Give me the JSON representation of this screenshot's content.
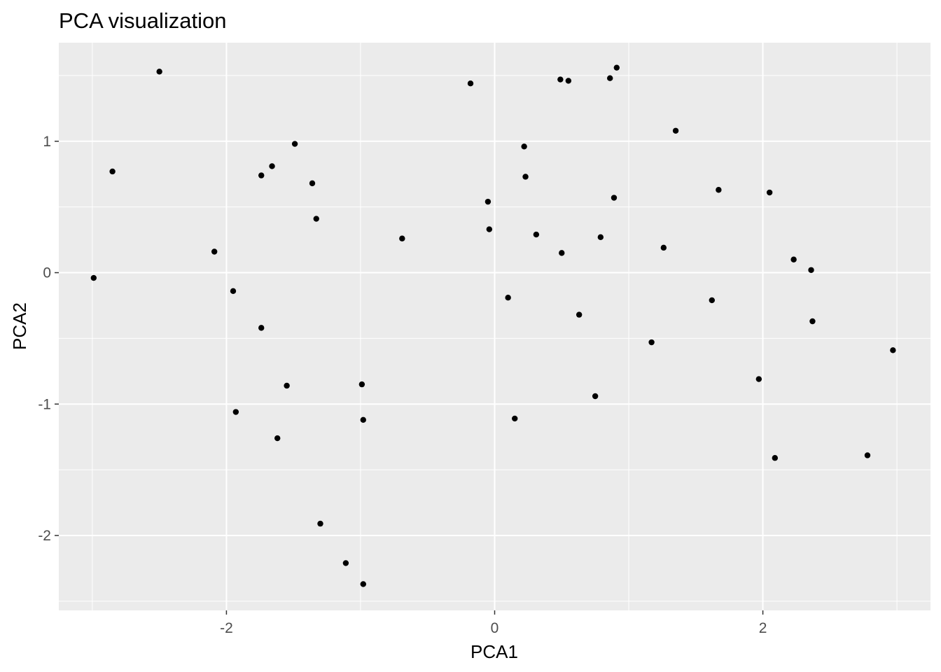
{
  "chart_data": {
    "type": "scatter",
    "title": "PCA visualization",
    "xlabel": "PCA1",
    "ylabel": "PCA2",
    "xlim": [
      -3.25,
      3.25
    ],
    "ylim": [
      -2.57,
      1.75
    ],
    "x_ticks": [
      -2,
      0,
      2
    ],
    "x_tick_labels": [
      "-2",
      "0",
      "2"
    ],
    "y_ticks": [
      -2,
      -1,
      0,
      1
    ],
    "y_tick_labels": [
      "-2",
      "-1",
      "0",
      "1"
    ],
    "x_minor_ticks": [
      -3,
      -1,
      1,
      3
    ],
    "y_minor_ticks": [
      -2.5,
      -1.5,
      -0.5,
      0.5,
      1.5
    ],
    "grid": true,
    "legend": "none",
    "panel_background": "#EBEBEB",
    "grid_color": "#FFFFFF",
    "point_color": "#000000",
    "series": [
      {
        "points": [
          [
            -2.99,
            -0.04
          ],
          [
            -2.85,
            0.77
          ],
          [
            -2.5,
            1.53
          ],
          [
            -2.09,
            0.16
          ],
          [
            -1.95,
            -0.14
          ],
          [
            -1.93,
            -1.06
          ],
          [
            -1.74,
            0.74
          ],
          [
            -1.74,
            -0.42
          ],
          [
            -1.66,
            0.81
          ],
          [
            -1.62,
            -1.26
          ],
          [
            -1.55,
            -0.86
          ],
          [
            -1.49,
            0.98
          ],
          [
            -1.36,
            0.68
          ],
          [
            -1.33,
            0.41
          ],
          [
            -1.3,
            -1.91
          ],
          [
            -1.11,
            -2.21
          ],
          [
            -0.99,
            -0.85
          ],
          [
            -0.98,
            -1.12
          ],
          [
            -0.98,
            -2.37
          ],
          [
            -0.69,
            0.26
          ],
          [
            -0.18,
            1.44
          ],
          [
            -0.05,
            0.54
          ],
          [
            -0.04,
            0.33
          ],
          [
            0.1,
            -0.19
          ],
          [
            0.15,
            -1.11
          ],
          [
            0.22,
            0.96
          ],
          [
            0.23,
            0.73
          ],
          [
            0.31,
            0.29
          ],
          [
            0.49,
            1.47
          ],
          [
            0.5,
            0.15
          ],
          [
            0.55,
            1.46
          ],
          [
            0.63,
            -0.32
          ],
          [
            0.75,
            -0.94
          ],
          [
            0.79,
            0.27
          ],
          [
            0.86,
            1.48
          ],
          [
            0.89,
            0.57
          ],
          [
            0.91,
            1.56
          ],
          [
            1.17,
            -0.53
          ],
          [
            1.26,
            0.19
          ],
          [
            1.35,
            1.08
          ],
          [
            1.62,
            -0.21
          ],
          [
            1.67,
            0.63
          ],
          [
            1.97,
            -0.81
          ],
          [
            2.05,
            0.61
          ],
          [
            2.09,
            -1.41
          ],
          [
            2.23,
            0.1
          ],
          [
            2.36,
            0.02
          ],
          [
            2.37,
            -0.37
          ],
          [
            2.78,
            -1.39
          ],
          [
            2.97,
            -0.59
          ]
        ]
      }
    ]
  }
}
